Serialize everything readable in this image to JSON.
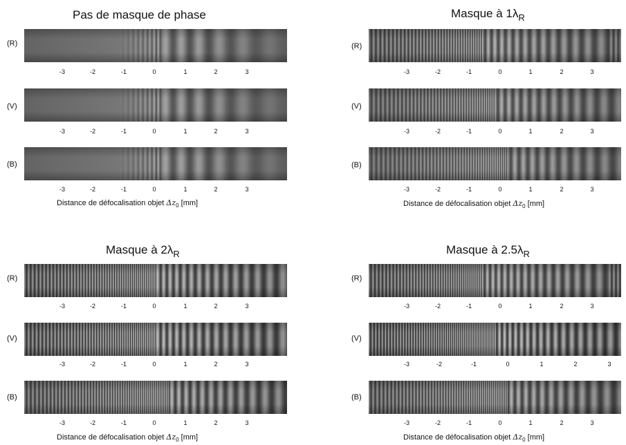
{
  "panels": [
    {
      "title_main": "Pas de masque de phase",
      "title_sub": "",
      "xlabel": "Distance de défocalisation objet",
      "rows": [
        {
          "channel": "(R)",
          "ticks": [
            "-3",
            "-2",
            "-1",
            "0",
            "1",
            "2",
            "3"
          ]
        },
        {
          "channel": "(V)",
          "ticks": [
            "-3",
            "-2",
            "-1",
            "0",
            "1",
            "2",
            "3"
          ]
        },
        {
          "channel": "(B)",
          "ticks": [
            "-3",
            "-2",
            "-1",
            "0",
            "1",
            "2",
            "3"
          ]
        }
      ]
    },
    {
      "title_main": "Masque à 1λ",
      "title_sub": "R",
      "xlabel": "Distance de défocalisation objet",
      "rows": [
        {
          "channel": "(R)",
          "ticks": [
            "-3",
            "-2",
            "-1",
            "0",
            "1",
            "2",
            "3"
          ]
        },
        {
          "channel": "(V)",
          "ticks": [
            "-3",
            "-2",
            "-1",
            "0",
            "1",
            "2",
            "3"
          ]
        },
        {
          "channel": "(B)",
          "ticks": [
            "-3",
            "-2",
            "-1",
            "0",
            "1",
            "2",
            "3"
          ]
        }
      ]
    },
    {
      "title_main": "Masque à 2λ",
      "title_sub": "R",
      "xlabel": "Distance de défocalisation objet",
      "rows": [
        {
          "channel": "(R)",
          "ticks": [
            "-3",
            "-2",
            "-1",
            "0",
            "1",
            "2",
            "3"
          ]
        },
        {
          "channel": "(V)",
          "ticks": [
            "-3",
            "-2",
            "-1",
            "0",
            "1",
            "2",
            "3"
          ]
        },
        {
          "channel": "(B)",
          "ticks": [
            "-3",
            "-2",
            "-1",
            "0",
            "1",
            "2",
            "3"
          ]
        }
      ]
    },
    {
      "title_main": "Masque à 2.5λ",
      "title_sub": "R",
      "xlabel": "Distance de défocalisation objet",
      "rows": [
        {
          "channel": "(R)",
          "ticks": [
            "-3",
            "-2",
            "-1",
            "0",
            "1",
            "2",
            "3"
          ]
        },
        {
          "channel": "(V)",
          "ticks": [
            "-3",
            "-2",
            "-1",
            "0",
            "1",
            "2",
            "3"
          ]
        },
        {
          "channel": "(B)",
          "ticks": [
            "-3",
            "-2",
            "-1",
            "0",
            "1",
            "2",
            "3"
          ]
        }
      ]
    }
  ],
  "xlabel_symbol": "Δz",
  "xlabel_subscript": "0",
  "xlabel_unit": "[mm]"
}
